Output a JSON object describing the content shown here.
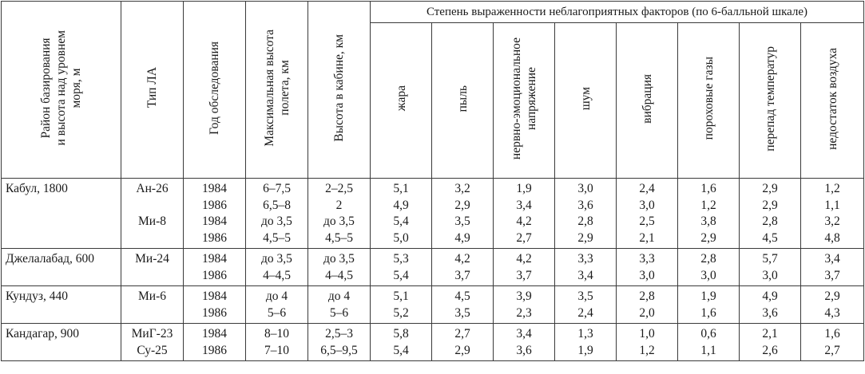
{
  "headers": {
    "district": [
      "Район базирования",
      "и высота над уровнем",
      "моря, м"
    ],
    "aircraft_type": [
      "Тип ЛА"
    ],
    "survey_year": [
      "Год обследования"
    ],
    "max_altitude": [
      "Максимальная высота",
      "полета, км"
    ],
    "cabin_altitude": [
      "Высота в кабине, км"
    ],
    "factors_group": "Степень выраженности неблагоприятных факторов (по 6-балльной шкале)",
    "factors": [
      [
        "жара"
      ],
      [
        "пыль"
      ],
      [
        "нервно-эмоциональное",
        "напряжение"
      ],
      [
        "шум"
      ],
      [
        "вибрация"
      ],
      [
        "пороховые газы"
      ],
      [
        "перепад температур"
      ],
      [
        "недостаток воздуха"
      ]
    ]
  },
  "rows": [
    {
      "district": "Кабул, 1800",
      "aircraft": [
        "Ан-26",
        "",
        "Ми-8",
        ""
      ],
      "years": [
        "1984",
        "1986",
        "1984",
        "1986"
      ],
      "max_alt": [
        "6–7,5",
        "6,5–8",
        "до 3,5",
        "4,5–5"
      ],
      "cabin_alt": [
        "2–2,5",
        "2",
        "до 3,5",
        "4,5–5"
      ],
      "heat": [
        "5,1",
        "4,9",
        "5,4",
        "5,0"
      ],
      "dust": [
        "3,2",
        "2,9",
        "3,5",
        "4,9"
      ],
      "stress": [
        "1,9",
        "3,4",
        "4,2",
        "2,7"
      ],
      "noise": [
        "3,0",
        "3,6",
        "2,8",
        "2,9"
      ],
      "vibration": [
        "2,4",
        "3,0",
        "2,5",
        "2,1"
      ],
      "gases": [
        "1,6",
        "1,2",
        "3,8",
        "2,9"
      ],
      "temp_drop": [
        "2,9",
        "2,9",
        "2,8",
        "4,5"
      ],
      "air_lack": [
        "1,2",
        "1,1",
        "3,2",
        "4,8"
      ]
    },
    {
      "district": "Джелалабад, 600",
      "aircraft": [
        "Ми-24",
        ""
      ],
      "years": [
        "1984",
        "1986"
      ],
      "max_alt": [
        "до 3,5",
        "4–4,5"
      ],
      "cabin_alt": [
        "до 3,5",
        "4–4,5"
      ],
      "heat": [
        "5,3",
        "5,4"
      ],
      "dust": [
        "4,2",
        "3,7"
      ],
      "stress": [
        "4,2",
        "3,7"
      ],
      "noise": [
        "3,3",
        "3,4"
      ],
      "vibration": [
        "3,3",
        "3,0"
      ],
      "gases": [
        "2,8",
        "3,0"
      ],
      "temp_drop": [
        "5,7",
        "3,0"
      ],
      "air_lack": [
        "3,4",
        "3,7"
      ]
    },
    {
      "district": "Кундуз, 440",
      "aircraft": [
        "Ми-6",
        ""
      ],
      "years": [
        "1984",
        "1986"
      ],
      "max_alt": [
        "до 4",
        "5–6"
      ],
      "cabin_alt": [
        "до 4",
        "5–6"
      ],
      "heat": [
        "5,1",
        "5,2"
      ],
      "dust": [
        "4,5",
        "3,5"
      ],
      "stress": [
        "3,9",
        "2,3"
      ],
      "noise": [
        "3,5",
        "2,4"
      ],
      "vibration": [
        "2,8",
        "2,0"
      ],
      "gases": [
        "1,9",
        "1,6"
      ],
      "temp_drop": [
        "4,9",
        "3,6"
      ],
      "air_lack": [
        "2,9",
        "4,3"
      ]
    },
    {
      "district": "Кандагар, 900",
      "aircraft": [
        "МиГ-23",
        "Су-25"
      ],
      "years": [
        "1984",
        "1986"
      ],
      "max_alt": [
        "8–10",
        "7–10"
      ],
      "cabin_alt": [
        "2,5–3",
        "6,5–9,5"
      ],
      "heat": [
        "5,8",
        "5,4"
      ],
      "dust": [
        "2,7",
        "2,9"
      ],
      "stress": [
        "3,4",
        "3,6"
      ],
      "noise": [
        "1,3",
        "1,9"
      ],
      "vibration": [
        "1,0",
        "1,2"
      ],
      "gases": [
        "0,6",
        "1,1"
      ],
      "temp_drop": [
        "2,1",
        "2,6"
      ],
      "air_lack": [
        "1,6",
        "2,7"
      ]
    }
  ]
}
